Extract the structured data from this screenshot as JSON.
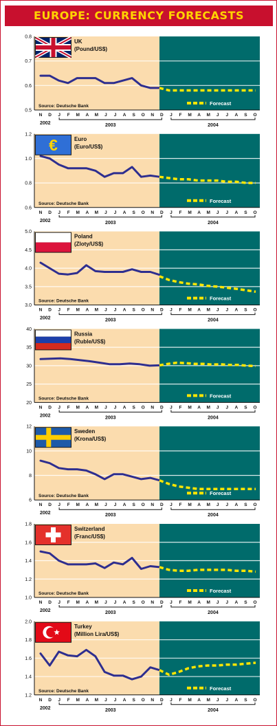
{
  "title": "EUROPE: CURRENCY FORECASTS",
  "colors": {
    "history_bg": "#fbdcae",
    "forecast_bg": "#006b6b",
    "actual_line": "#2e2e8f",
    "forecast_line": "#ffe600",
    "title_bg": "#c8102e",
    "title_text": "#ffd400"
  },
  "common": {
    "months": [
      "N",
      "D",
      "J",
      "F",
      "M",
      "A",
      "M",
      "J",
      "J",
      "A",
      "S",
      "O",
      "N",
      "D",
      "J",
      "F",
      "M",
      "A",
      "M",
      "J",
      "J",
      "A",
      "S",
      "O"
    ],
    "years": [
      "2002",
      "2003",
      "2004"
    ],
    "source": "Source: Deutsche Bank",
    "forecast_label": "Forecast"
  },
  "chart_data": [
    {
      "type": "line",
      "country": "UK",
      "flag": "uk-flag",
      "unit": "(Pound/US$)",
      "ylim": [
        0.5,
        0.8
      ],
      "yticks": [
        "0.8",
        "0.7",
        "0.6",
        "0.5"
      ],
      "actual": [
        0.64,
        0.64,
        0.62,
        0.61,
        0.63,
        0.63,
        0.63,
        0.61,
        0.61,
        0.62,
        0.63,
        0.6,
        0.59,
        0.59
      ],
      "forecast": [
        0.59,
        0.58,
        0.58,
        0.58,
        0.58,
        0.58,
        0.58,
        0.58,
        0.58,
        0.58,
        0.58
      ]
    },
    {
      "type": "line",
      "country": "Euro",
      "flag": "euro-flag",
      "unit": "(Euro/US$)",
      "ylim": [
        0.6,
        1.2
      ],
      "yticks": [
        "1.2",
        "1.0",
        "0.8",
        "0.6"
      ],
      "actual": [
        1.02,
        1.0,
        0.95,
        0.92,
        0.92,
        0.92,
        0.9,
        0.85,
        0.88,
        0.88,
        0.93,
        0.85,
        0.86,
        0.85
      ],
      "forecast": [
        0.85,
        0.84,
        0.83,
        0.83,
        0.82,
        0.82,
        0.82,
        0.81,
        0.81,
        0.8,
        0.8
      ]
    },
    {
      "type": "line",
      "country": "Poland",
      "flag": "poland-flag",
      "unit": "(Zloty/US$)",
      "ylim": [
        3.0,
        5.0
      ],
      "yticks": [
        "5.0",
        "4.5",
        "4.0",
        "3.5",
        "3.0"
      ],
      "actual": [
        4.15,
        4.0,
        3.85,
        3.83,
        3.87,
        4.08,
        3.92,
        3.9,
        3.9,
        3.9,
        3.97,
        3.9,
        3.9,
        3.82
      ],
      "forecast": [
        3.78,
        3.68,
        3.62,
        3.58,
        3.56,
        3.52,
        3.5,
        3.47,
        3.44,
        3.4,
        3.36
      ]
    },
    {
      "type": "line",
      "country": "Russia",
      "flag": "russia-flag",
      "unit": "(Ruble/US$)",
      "ylim": [
        20,
        40
      ],
      "yticks": [
        "40",
        "35",
        "30",
        "25",
        "20"
      ],
      "actual": [
        31.8,
        31.9,
        32.0,
        31.8,
        31.5,
        31.2,
        30.8,
        30.4,
        30.4,
        30.6,
        30.4,
        30.0,
        30.1
      ],
      "forecast": [
        30.1,
        30.5,
        30.8,
        30.7,
        30.5,
        30.5,
        30.3,
        30.4,
        30.2,
        30.2,
        30.0,
        29.9
      ]
    },
    {
      "type": "line",
      "country": "Sweden",
      "flag": "sweden-flag",
      "unit": "(Krona/US$)",
      "ylim": [
        6,
        12
      ],
      "yticks": [
        "12",
        "10",
        "8",
        "6"
      ],
      "actual": [
        9.2,
        9.0,
        8.6,
        8.5,
        8.5,
        8.4,
        8.1,
        7.7,
        8.1,
        8.1,
        7.9,
        7.7,
        7.8,
        7.6
      ],
      "forecast": [
        7.6,
        7.3,
        7.1,
        7.0,
        6.9,
        6.9,
        6.9,
        6.9,
        6.9,
        6.9,
        6.9
      ]
    },
    {
      "type": "line",
      "country": "Switzerland",
      "flag": "switzerland-flag",
      "unit": "(Franc/US$)",
      "ylim": [
        1.0,
        1.8
      ],
      "yticks": [
        "1.8",
        "1.6",
        "1.4",
        "1.2",
        "1.0"
      ],
      "actual": [
        1.5,
        1.48,
        1.4,
        1.36,
        1.36,
        1.36,
        1.37,
        1.32,
        1.38,
        1.36,
        1.43,
        1.31,
        1.34,
        1.33
      ],
      "forecast": [
        1.33,
        1.3,
        1.29,
        1.29,
        1.3,
        1.3,
        1.3,
        1.3,
        1.29,
        1.29,
        1.28
      ]
    },
    {
      "type": "line",
      "country": "Turkey",
      "flag": "turkey-flag",
      "unit": "(Million Lira/US$)",
      "ylim": [
        1.2,
        2.0
      ],
      "yticks": [
        "2.0",
        "1.8",
        "1.6",
        "1.4",
        "1.2"
      ],
      "actual": [
        1.65,
        1.52,
        1.67,
        1.63,
        1.62,
        1.69,
        1.62,
        1.45,
        1.41,
        1.41,
        1.37,
        1.4,
        1.5,
        1.47
      ],
      "forecast": [
        1.47,
        1.42,
        1.45,
        1.49,
        1.51,
        1.52,
        1.52,
        1.53,
        1.53,
        1.54,
        1.55
      ]
    }
  ]
}
